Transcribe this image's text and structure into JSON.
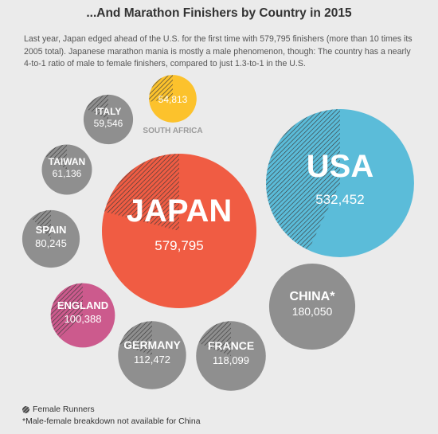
{
  "title": "...And Marathon Finishers by Country in 2015",
  "intro": "Last year, Japan edged ahead of the U.S. for the first time with 579,795 finishers (more than 10 times its 2005 total). Japanese marathon mania is mostly a male phenomenon, though: The country has a nearly 4-to-1 ratio of male to female finishers, compared to just 1.3-to-1 in the U.S.",
  "legend": {
    "female_label": "Female Runners"
  },
  "footnote": "*Male-female breakdown not available for China",
  "colors": {
    "japan": "#f05c43",
    "usa": "#5bbcd9",
    "south_africa": "#fcc22c",
    "england": "#cc5a8d",
    "other": "#8f8f8f",
    "hatch": "#3a3a3a"
  },
  "chart_data": {
    "type": "bubble",
    "title": "...And Marathon Finishers by Country in 2015",
    "unit": "finishers",
    "countries": [
      {
        "name": "JAPAN",
        "value": 579795,
        "value_label": "579,795",
        "female_share": 0.21,
        "color": "japan"
      },
      {
        "name": "USA",
        "value": 532452,
        "value_label": "532,452",
        "female_share": 0.43,
        "color": "usa"
      },
      {
        "name": "CHINA*",
        "value": 180050,
        "value_label": "180,050",
        "female_share": null,
        "color": "other"
      },
      {
        "name": "FRANCE",
        "value": 118099,
        "value_label": "118,099",
        "female_share": 0.19,
        "color": "other"
      },
      {
        "name": "GERMANY",
        "value": 112472,
        "value_label": "112,472",
        "female_share": 0.2,
        "color": "other"
      },
      {
        "name": "ENGLAND",
        "value": 100388,
        "value_label": "100,388",
        "female_share": 0.37,
        "color": "england"
      },
      {
        "name": "SPAIN",
        "value": 80245,
        "value_label": "80,245",
        "female_share": 0.12,
        "color": "other"
      },
      {
        "name": "TAIWAN",
        "value": 61136,
        "value_label": "61,136",
        "female_share": 0.16,
        "color": "other"
      },
      {
        "name": "ITALY",
        "value": 59546,
        "value_label": "59,546",
        "female_share": 0.18,
        "color": "other"
      },
      {
        "name": "SOUTH AFRICA",
        "value": 54813,
        "value_label": "54,813",
        "female_share": 0.27,
        "color": "south_africa"
      }
    ]
  }
}
